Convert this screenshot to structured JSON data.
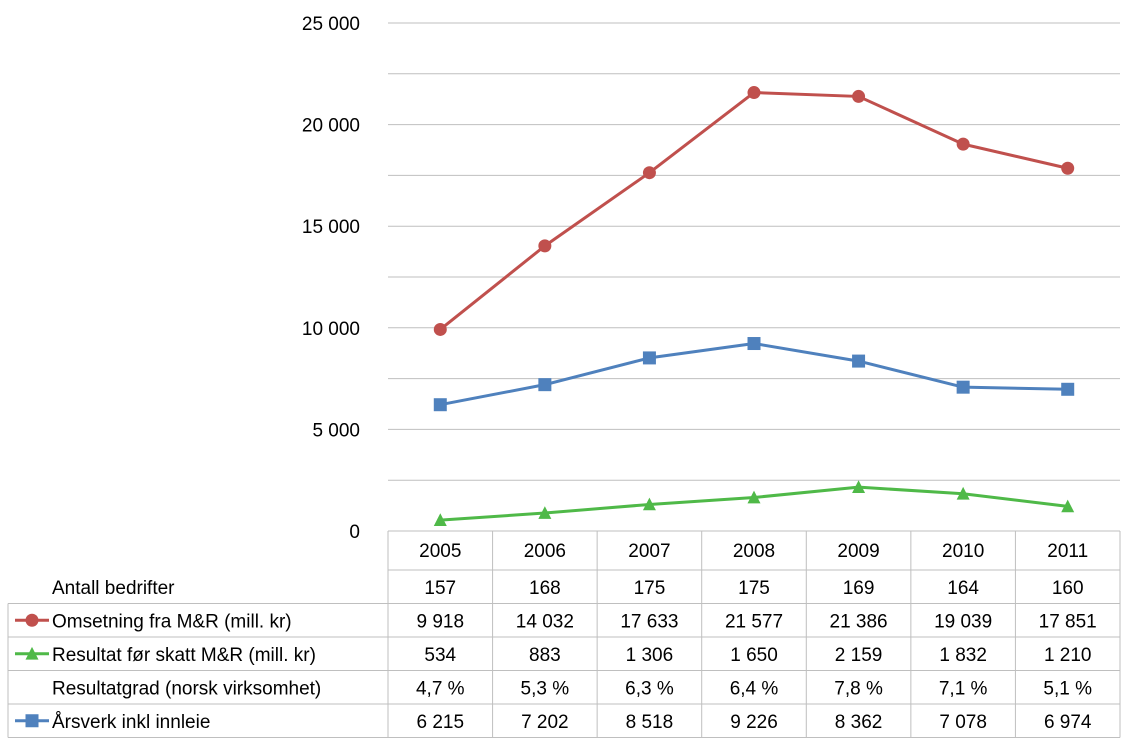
{
  "chart_data": {
    "type": "line",
    "title": "",
    "xlabel": "",
    "ylabel": "",
    "categories": [
      "2005",
      "2006",
      "2007",
      "2008",
      "2009",
      "2010",
      "2011"
    ],
    "ylim": [
      0,
      25000
    ],
    "yticks": [
      0,
      5000,
      10000,
      15000,
      20000,
      25000
    ],
    "ytick_labels": [
      "0",
      "5 000",
      "10 000",
      "15 000",
      "20 000",
      "25 000"
    ],
    "grid": true,
    "legend": "data-table",
    "series": [
      {
        "name": "Omsetning fra M&R (mill. kr)",
        "values": [
          9918,
          14032,
          17633,
          21577,
          21386,
          19039,
          17851
        ],
        "labels": [
          "9 918",
          "14 032",
          "17 633",
          "21 577",
          "21 386",
          "19 039",
          "17 851"
        ],
        "color": "#c0504d",
        "marker": "circle"
      },
      {
        "name": "Resultat før skatt M&R (mill. kr)",
        "values": [
          534,
          883,
          1306,
          1650,
          2159,
          1832,
          1210
        ],
        "labels": [
          "534",
          "883",
          "1 306",
          "1 650",
          "2 159",
          "1 832",
          "1 210"
        ],
        "color": "#4fb948",
        "marker": "triangle"
      },
      {
        "name": "Årsverk inkl innleie",
        "values": [
          6215,
          7202,
          8518,
          9226,
          8362,
          7078,
          6974
        ],
        "labels": [
          "6 215",
          "7 202",
          "8 518",
          "9 226",
          "8 362",
          "7 078",
          "6 974"
        ],
        "color": "#4f81bd",
        "marker": "square"
      }
    ],
    "table_rows": [
      {
        "name": "Antall bedrifter",
        "labels": [
          "157",
          "168",
          "175",
          "175",
          "169",
          "164",
          "160"
        ]
      },
      {
        "series_index": 0
      },
      {
        "series_index": 1
      },
      {
        "name": "Resultatgrad (norsk virksomhet)",
        "labels": [
          "4,7 %",
          "5,3 %",
          "6,3 %",
          "6,4 %",
          "7,8 %",
          "7,1 %",
          "5,1 %"
        ]
      },
      {
        "series_index": 2
      }
    ]
  }
}
